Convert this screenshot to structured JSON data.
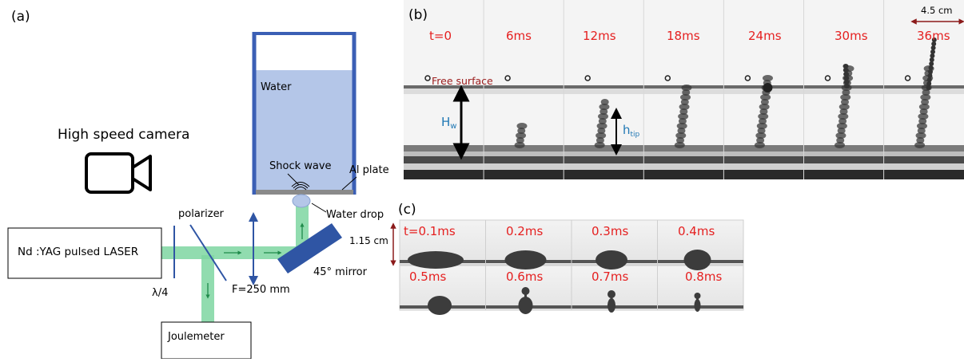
{
  "panel_a": {
    "label": "(a)",
    "camera_label": "High speed camera",
    "laser_label": "Nd :YAG pulsed LASER",
    "quarter_wave_label": "λ/4",
    "polarizer_label": "polarizer",
    "lens_label": "F=250 mm",
    "mirror_label": "45° mirror",
    "joulemeter_label": "Joulemeter",
    "water_label": "Water",
    "shock_wave_label": "Shock wave",
    "al_plate_label": "Al plate",
    "water_drop_label": "Water drop",
    "colors": {
      "beam": "#7ed6a1",
      "container": "#3b5fb5",
      "water": "#b4c6e8",
      "mirror": "#2f55a4"
    }
  },
  "panel_b": {
    "label": "(b)",
    "scale_label": "4.5 cm",
    "free_surface_label": "Free surface",
    "hw_label": "H",
    "hw_sub": "w",
    "htip_label": "h",
    "htip_sub": "tip",
    "times": [
      "t=0",
      "6ms",
      "12ms",
      "18ms",
      "24ms",
      "30ms",
      "36ms"
    ],
    "colors": {
      "time_text": "#e52020",
      "h_text": "#1f77b4",
      "free_surface_text": "#9b1b1b"
    }
  },
  "panel_c": {
    "label": "(c)",
    "scale_label": "1.15 cm",
    "times_row1": [
      "t=0.1ms",
      "0.2ms",
      "0.3ms",
      "0.4ms"
    ],
    "times_row2": [
      "0.5ms",
      "0.6ms",
      "0.7ms",
      "0.8ms"
    ]
  }
}
